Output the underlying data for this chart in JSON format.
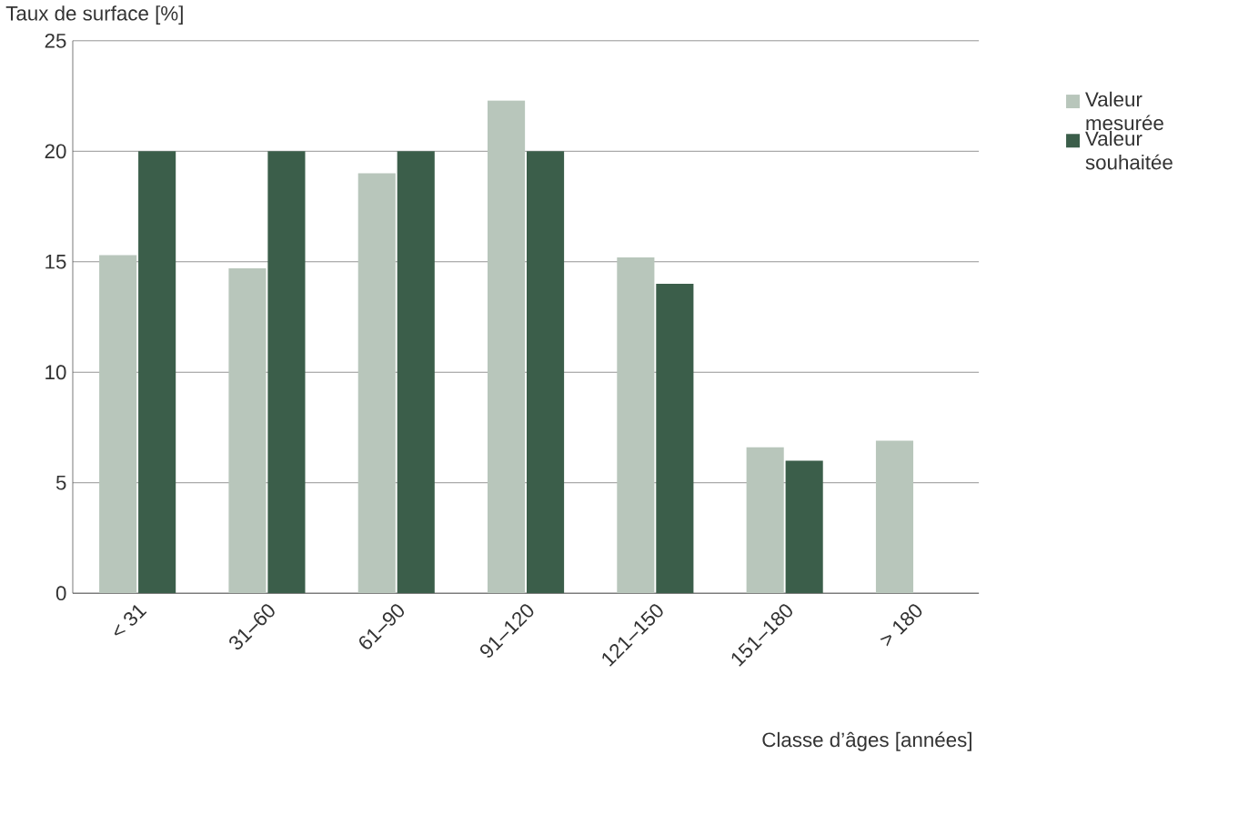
{
  "chart_data": {
    "type": "bar",
    "ylabel": "Taux de surface [%]",
    "xlabel": "Classe d’âges [années]",
    "categories": [
      "< 31",
      "31–60",
      "61–90",
      "91–120",
      "121–150",
      "151–180",
      "> 180"
    ],
    "series": [
      {
        "name": "Valeur mesurée",
        "color": "#b8c6bb",
        "values": [
          15.3,
          14.7,
          19.0,
          22.3,
          15.2,
          6.6,
          6.9
        ]
      },
      {
        "name": "Valeur souhaitée",
        "color": "#3b5e4a",
        "values": [
          20,
          20,
          20,
          20,
          14,
          6,
          0
        ]
      }
    ],
    "ylim": [
      0,
      25
    ],
    "yticks": [
      0,
      5,
      10,
      15,
      20,
      25
    ],
    "grid": "y",
    "legend": "top right"
  }
}
